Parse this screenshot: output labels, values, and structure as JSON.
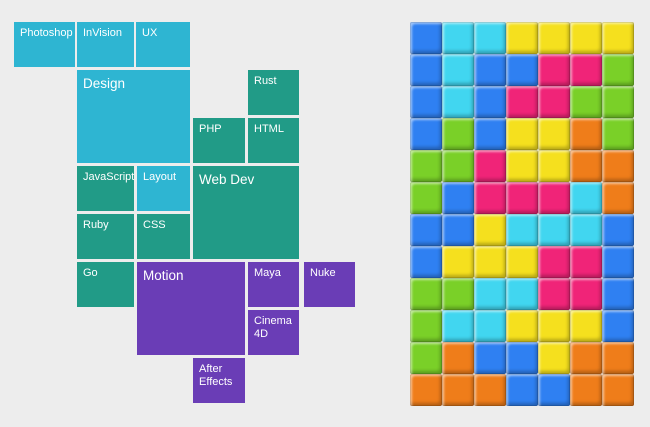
{
  "background_color": "#ededed",
  "chart_data": [
    {
      "type": "treemap",
      "title": "",
      "legend": "none",
      "palette": {
        "cyan": "#2eb5d2",
        "teal": "#219b87",
        "purple": "#6a3db6"
      },
      "groups": [
        {
          "name": "Design",
          "color": "#2eb5d2",
          "items": [
            "Photoshop",
            "InVision",
            "UX",
            "Design",
            "Layout"
          ]
        },
        {
          "name": "Web Dev",
          "color": "#219b87",
          "items": [
            "Rust",
            "PHP",
            "HTML",
            "JavaScript",
            "Web Dev",
            "Ruby",
            "CSS",
            "Go"
          ]
        },
        {
          "name": "Motion",
          "color": "#6a3db6",
          "items": [
            "Motion",
            "Maya",
            "Nuke",
            "Cinema 4D",
            "After Effects"
          ]
        }
      ],
      "tiles": [
        {
          "label": "Photoshop",
          "color": "cyan",
          "size": "small"
        },
        {
          "label": "InVision",
          "color": "cyan",
          "size": "small"
        },
        {
          "label": "UX",
          "color": "cyan",
          "size": "small"
        },
        {
          "label": "Design",
          "color": "cyan",
          "size": "large"
        },
        {
          "label": "Rust",
          "color": "teal",
          "size": "small"
        },
        {
          "label": "PHP",
          "color": "teal",
          "size": "small"
        },
        {
          "label": "HTML",
          "color": "teal",
          "size": "small"
        },
        {
          "label": "JavaScript",
          "color": "teal",
          "size": "small"
        },
        {
          "label": "Layout",
          "color": "cyan",
          "size": "small"
        },
        {
          "label": "Web Dev",
          "color": "teal",
          "size": "large"
        },
        {
          "label": "Ruby",
          "color": "teal",
          "size": "small"
        },
        {
          "label": "CSS",
          "color": "teal",
          "size": "small"
        },
        {
          "label": "Go",
          "color": "teal",
          "size": "small"
        },
        {
          "label": "Motion",
          "color": "purple",
          "size": "large"
        },
        {
          "label": "Maya",
          "color": "purple",
          "size": "small"
        },
        {
          "label": "Nuke",
          "color": "purple",
          "size": "small"
        },
        {
          "label": "Cinema 4D",
          "color": "purple",
          "size": "small"
        },
        {
          "label": "After Effects",
          "color": "purple",
          "size": "small"
        }
      ]
    },
    {
      "type": "heatmap",
      "title": "",
      "columns": 7,
      "rows": 12,
      "palette": {
        "blue": "#2f80f2",
        "cyan": "#41d6f0",
        "yellow": "#f5e01e",
        "pink": "#f02478",
        "green": "#7ad028",
        "orange": "#ef7d1a"
      },
      "cells": [
        [
          "blue",
          "cyan",
          "cyan",
          "yellow",
          "yellow",
          "yellow",
          "yellow"
        ],
        [
          "blue",
          "cyan",
          "blue",
          "blue",
          "pink",
          "pink",
          "green"
        ],
        [
          "blue",
          "cyan",
          "blue",
          "pink",
          "pink",
          "green",
          "green"
        ],
        [
          "blue",
          "green",
          "blue",
          "yellow",
          "yellow",
          "orange",
          "green"
        ],
        [
          "green",
          "green",
          "pink",
          "yellow",
          "yellow",
          "orange",
          "orange"
        ],
        [
          "green",
          "blue",
          "pink",
          "pink",
          "pink",
          "cyan",
          "orange"
        ],
        [
          "blue",
          "blue",
          "yellow",
          "cyan",
          "cyan",
          "cyan",
          "blue"
        ],
        [
          "blue",
          "yellow",
          "yellow",
          "yellow",
          "pink",
          "pink",
          "blue"
        ],
        [
          "green",
          "green",
          "cyan",
          "cyan",
          "pink",
          "pink",
          "blue"
        ],
        [
          "green",
          "cyan",
          "cyan",
          "yellow",
          "yellow",
          "yellow",
          "blue"
        ],
        [
          "green",
          "orange",
          "blue",
          "blue",
          "yellow",
          "orange",
          "orange"
        ],
        [
          "orange",
          "orange",
          "orange",
          "blue",
          "blue",
          "orange",
          "orange"
        ]
      ]
    }
  ]
}
